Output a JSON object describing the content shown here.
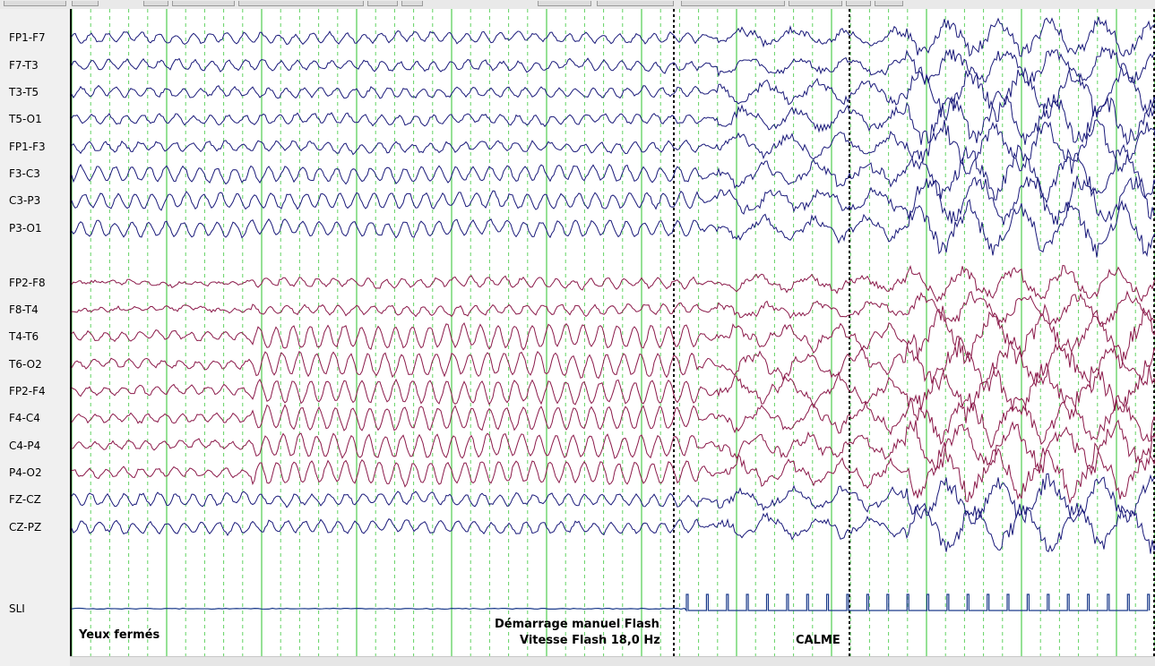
{
  "channels": {
    "left": [
      "FP1-F7",
      "F7-T3",
      "T3-T5",
      "T5-O1",
      "FP1-F3",
      "F3-C3",
      "C3-P3",
      "P3-O1"
    ],
    "right": [
      "FP2-F8",
      "F8-T4",
      "T4-T6",
      "T6-O2",
      "FP2-F4",
      "F4-C4",
      "C4-P4",
      "P4-O2"
    ],
    "midline": [
      "FZ-CZ",
      "CZ-PZ"
    ],
    "stim": "SLI"
  },
  "annotations": {
    "eyes": "Yeux fermés",
    "flash_start": "Démarrage manuel Flash",
    "flash_rate": "Vitesse Flash 18,0 Hz",
    "calm": "CALME"
  },
  "colors": {
    "left_trace": "#1a1a7a",
    "right_trace": "#8b1a4a",
    "midline_trace": "#1a1a7a",
    "stim_trace": "#1a3a8a",
    "grid_solid": "#3cc83c",
    "grid_dashed": "#3cc83c",
    "marker": "#000000"
  },
  "stimulation": {
    "flash_rate_hz": 18.0
  }
}
